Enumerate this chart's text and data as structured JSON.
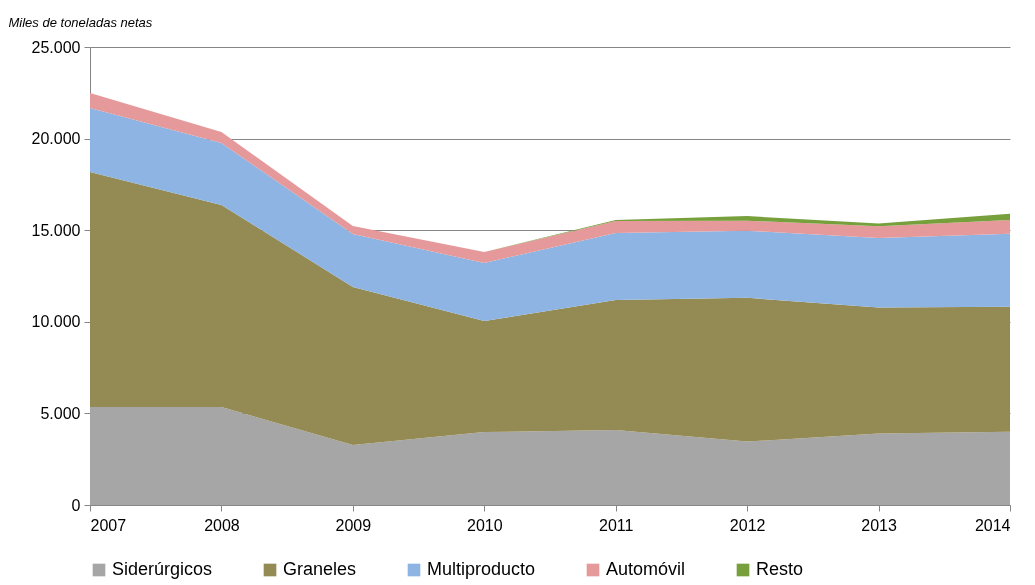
{
  "chart_data": {
    "type": "area",
    "stacked": true,
    "ylabel": "Miles de toneladas netas",
    "categories": [
      "2007",
      "2008",
      "2009",
      "2010",
      "2011",
      "2012",
      "2013",
      "2014"
    ],
    "series": [
      {
        "name": "Siderúrgicos",
        "color": "#a6a6a6",
        "values": [
          5350,
          5350,
          3280,
          3980,
          4090,
          3460,
          3900,
          4000
        ]
      },
      {
        "name": "Graneles",
        "color": "#948a54",
        "values": [
          12830,
          11030,
          8620,
          6060,
          7100,
          7850,
          6880,
          6820
        ]
      },
      {
        "name": "Multiproducto",
        "color": "#8db4e2",
        "values": [
          3490,
          3380,
          2890,
          3170,
          3660,
          3660,
          3790,
          3990
        ]
      },
      {
        "name": "Automóvil",
        "color": "#e6999a",
        "values": [
          820,
          600,
          440,
          600,
          650,
          550,
          640,
          750
        ]
      },
      {
        "name": "Resto",
        "color": "#77a03c",
        "values": [
          0,
          0,
          0,
          0,
          50,
          250,
          160,
          340
        ]
      }
    ],
    "ylim": [
      0,
      25000
    ],
    "yticks": [
      {
        "value": 0,
        "label": "0"
      },
      {
        "value": 5000,
        "label": "5.000"
      },
      {
        "value": 10000,
        "label": "10.000"
      },
      {
        "value": 15000,
        "label": "15.000"
      },
      {
        "value": 20000,
        "label": "20.000"
      },
      {
        "value": 25000,
        "label": "25.000"
      }
    ],
    "grid": "y",
    "legend": "bottom"
  }
}
